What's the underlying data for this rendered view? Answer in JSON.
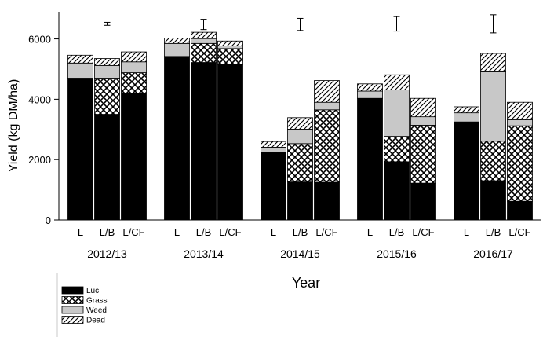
{
  "chart_data": {
    "type": "bar",
    "stacked": true,
    "ylabel": "Yield (kg DM/ha)",
    "xlabel": "Year",
    "ylim": [
      0,
      6900
    ],
    "yticks": [
      0,
      2000,
      4000,
      6000
    ],
    "ytick_labels": [
      "0",
      "2000",
      "4000",
      "6000"
    ],
    "stack_order": [
      "Luc",
      "Grass",
      "Weed",
      "Dead"
    ],
    "legend": [
      {
        "name": "Luc",
        "fill": "#000000"
      },
      {
        "name": "Grass",
        "fill": "crosshatch"
      },
      {
        "name": "Weed",
        "fill": "#c8c8c8"
      },
      {
        "name": "Dead",
        "fill": "diagonal-hatch"
      }
    ],
    "legend_position": "bottom-left",
    "groups": [
      {
        "year": "2012/13",
        "error_bar": {
          "center": 6500,
          "half": 50
        },
        "bars": [
          {
            "label": "L",
            "Luc": 4700,
            "Grass": 0,
            "Weed": 500,
            "Dead": 260
          },
          {
            "label": "L/B",
            "Luc": 3500,
            "Grass": 1200,
            "Weed": 420,
            "Dead": 230
          },
          {
            "label": "L/CF",
            "Luc": 4200,
            "Grass": 680,
            "Weed": 360,
            "Dead": 330
          }
        ]
      },
      {
        "year": "2013/14",
        "error_bar": {
          "center": 6480,
          "half": 170
        },
        "bars": [
          {
            "label": "L",
            "Luc": 5420,
            "Grass": 0,
            "Weed": 430,
            "Dead": 180
          },
          {
            "label": "L/B",
            "Luc": 5220,
            "Grass": 630,
            "Weed": 160,
            "Dead": 210
          },
          {
            "label": "L/CF",
            "Luc": 5150,
            "Grass": 530,
            "Weed": 90,
            "Dead": 160
          }
        ]
      },
      {
        "year": "2014/15",
        "error_bar": {
          "center": 6480,
          "half": 200
        },
        "bars": [
          {
            "label": "L",
            "Luc": 2230,
            "Grass": 0,
            "Weed": 180,
            "Dead": 190
          },
          {
            "label": "L/B",
            "Luc": 1260,
            "Grass": 1270,
            "Weed": 480,
            "Dead": 380
          },
          {
            "label": "L/CF",
            "Luc": 1250,
            "Grass": 2400,
            "Weed": 250,
            "Dead": 720
          }
        ]
      },
      {
        "year": "2015/16",
        "error_bar": {
          "center": 6500,
          "half": 240
        },
        "bars": [
          {
            "label": "L",
            "Luc": 4030,
            "Grass": 0,
            "Weed": 240,
            "Dead": 240
          },
          {
            "label": "L/B",
            "Luc": 1930,
            "Grass": 840,
            "Weed": 1540,
            "Dead": 500
          },
          {
            "label": "L/CF",
            "Luc": 1220,
            "Grass": 1920,
            "Weed": 280,
            "Dead": 610
          }
        ]
      },
      {
        "year": "2016/17",
        "error_bar": {
          "center": 6500,
          "half": 300
        },
        "bars": [
          {
            "label": "L",
            "Luc": 3250,
            "Grass": 0,
            "Weed": 300,
            "Dead": 200
          },
          {
            "label": "L/B",
            "Luc": 1300,
            "Grass": 1310,
            "Weed": 2300,
            "Dead": 610
          },
          {
            "label": "L/CF",
            "Luc": 620,
            "Grass": 2500,
            "Weed": 200,
            "Dead": 580
          }
        ]
      }
    ]
  }
}
